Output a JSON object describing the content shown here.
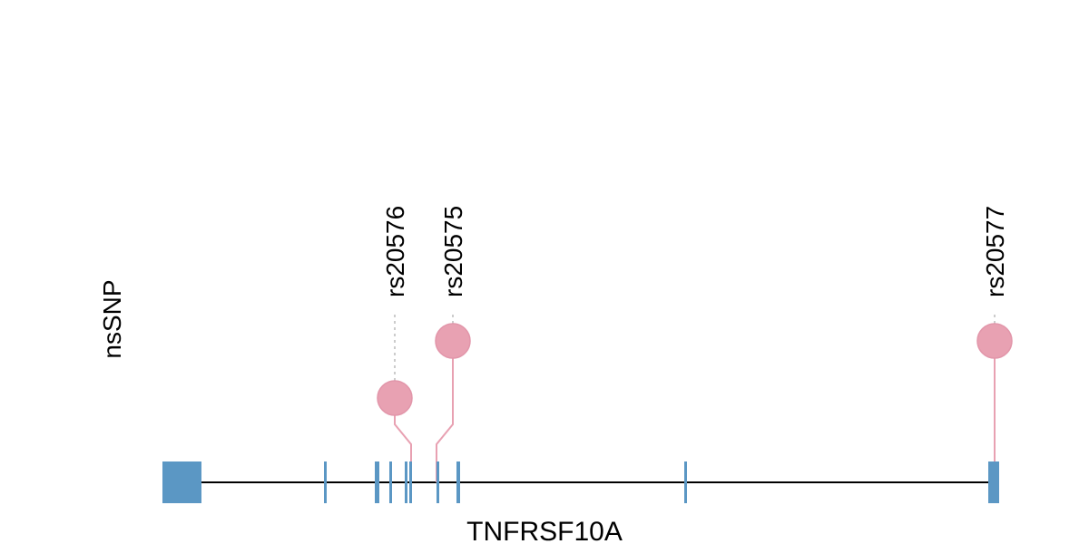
{
  "chart_data": {
    "type": "lollipop",
    "track_label": "nsSNP",
    "gene_name": "TNFRSF10A",
    "gene_color": "#5b97c4",
    "snp_color": "#e8a1b2",
    "stem_color": "#e8a1b2",
    "backbone_color": "#000000",
    "exons": [
      {
        "start": 0,
        "end": 43
      },
      {
        "start": 178,
        "end": 181
      },
      {
        "start": 234,
        "end": 239
      },
      {
        "start": 250,
        "end": 252
      },
      {
        "start": 267,
        "end": 270
      },
      {
        "start": 272,
        "end": 275
      },
      {
        "start": 302,
        "end": 305
      },
      {
        "start": 324,
        "end": 328
      },
      {
        "start": 575,
        "end": 578
      },
      {
        "start": 910,
        "end": 922
      }
    ],
    "snps": [
      {
        "id": "rs20576",
        "position": 274,
        "level": 1
      },
      {
        "id": "rs20575",
        "position": 302,
        "level": 2
      },
      {
        "id": "rs20577",
        "position": 917,
        "level": 2
      }
    ]
  }
}
